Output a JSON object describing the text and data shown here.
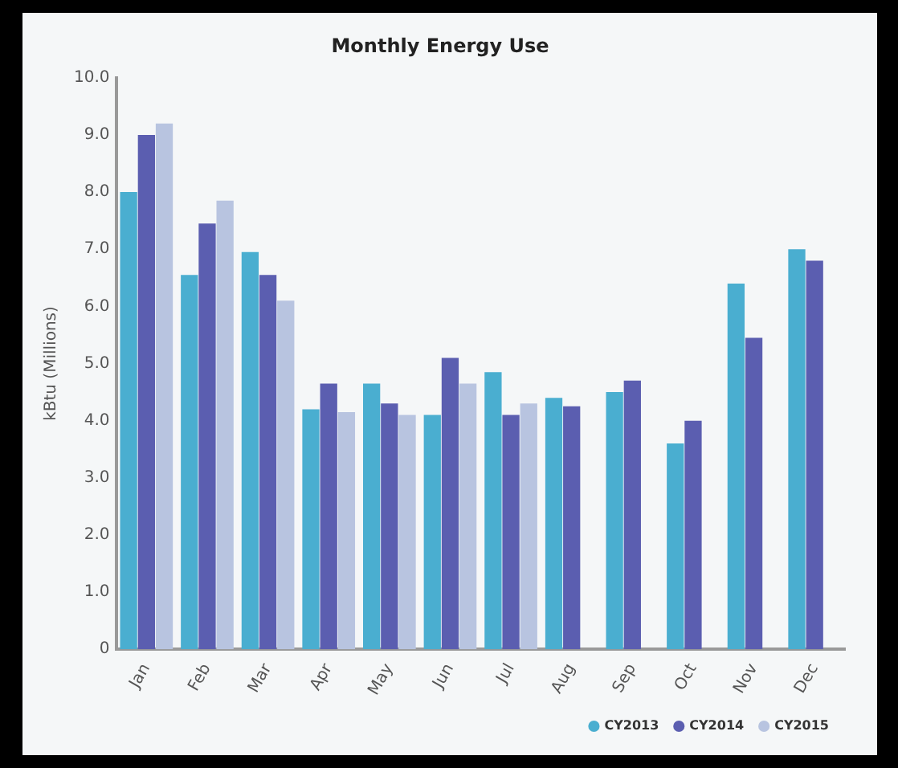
{
  "chart_data": {
    "type": "bar",
    "title": "Monthly Energy Use",
    "ylabel": "kBtu (Millions)",
    "categories": [
      "Jan",
      "Feb",
      "Mar",
      "Apr",
      "May",
      "Jun",
      "Jul",
      "Aug",
      "Sep",
      "Oct",
      "Nov",
      "Dec"
    ],
    "series": [
      {
        "name": "CY2013",
        "color": "#4aaed0",
        "values": [
          8.0,
          6.55,
          6.95,
          4.2,
          4.65,
          4.1,
          4.85,
          4.4,
          4.5,
          3.6,
          6.4,
          7.0
        ]
      },
      {
        "name": "CY2014",
        "color": "#5b5eb0",
        "values": [
          9.0,
          7.45,
          6.55,
          4.65,
          4.3,
          5.1,
          4.1,
          4.25,
          4.7,
          4.0,
          5.45,
          6.8
        ]
      },
      {
        "name": "CY2015",
        "color": "#b8c4e0",
        "values": [
          9.2,
          7.85,
          6.1,
          4.15,
          4.1,
          4.65,
          4.3,
          null,
          null,
          null,
          null,
          null
        ]
      }
    ],
    "ylim": [
      0,
      10
    ],
    "yticks": [
      0,
      {
        "value": 1,
        "label": "1.0"
      },
      {
        "value": 2,
        "label": "2.0"
      },
      {
        "value": 3,
        "label": "3.0"
      },
      {
        "value": 4,
        "label": "4.0"
      },
      {
        "value": 5,
        "label": "5.0"
      },
      {
        "value": 6,
        "label": "6.0"
      },
      {
        "value": 7,
        "label": "7.0"
      },
      {
        "value": 8,
        "label": "8.0"
      },
      {
        "value": 9,
        "label": "9.0"
      },
      {
        "value": 10,
        "label": "10.0"
      }
    ],
    "grid": false,
    "legend": "bottom right"
  }
}
